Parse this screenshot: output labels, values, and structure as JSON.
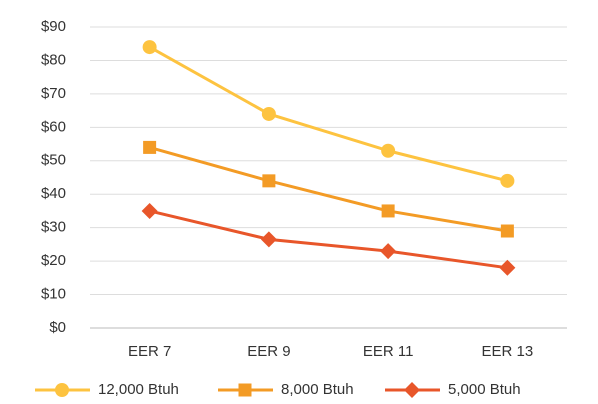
{
  "chart_data": {
    "type": "line",
    "categories": [
      "EER 7",
      "EER 9",
      "EER 11",
      "EER 13"
    ],
    "series": [
      {
        "name": "12,000 Btuh",
        "color": "#fdc340",
        "marker": "circle",
        "values": [
          84,
          64,
          53,
          44
        ]
      },
      {
        "name": "8,000 Btuh",
        "color": "#f39b25",
        "marker": "square",
        "values": [
          54,
          44,
          35,
          29
        ]
      },
      {
        "name": "5,000 Btuh",
        "color": "#e8562a",
        "marker": "diamond",
        "values": [
          35,
          26.5,
          23,
          18
        ]
      }
    ],
    "ylim": [
      0,
      90
    ],
    "yticks": [
      {
        "value": 0,
        "label": "$0"
      },
      {
        "value": 10,
        "label": "$10"
      },
      {
        "value": 20,
        "label": "$20"
      },
      {
        "value": 30,
        "label": "$30"
      },
      {
        "value": 40,
        "label": "$40"
      },
      {
        "value": 50,
        "label": "$50"
      },
      {
        "value": 60,
        "label": "$60"
      },
      {
        "value": 70,
        "label": "$70"
      },
      {
        "value": 80,
        "label": "$80"
      },
      {
        "value": 90,
        "label": "$90"
      }
    ],
    "grid": true,
    "legend": "bottom"
  }
}
